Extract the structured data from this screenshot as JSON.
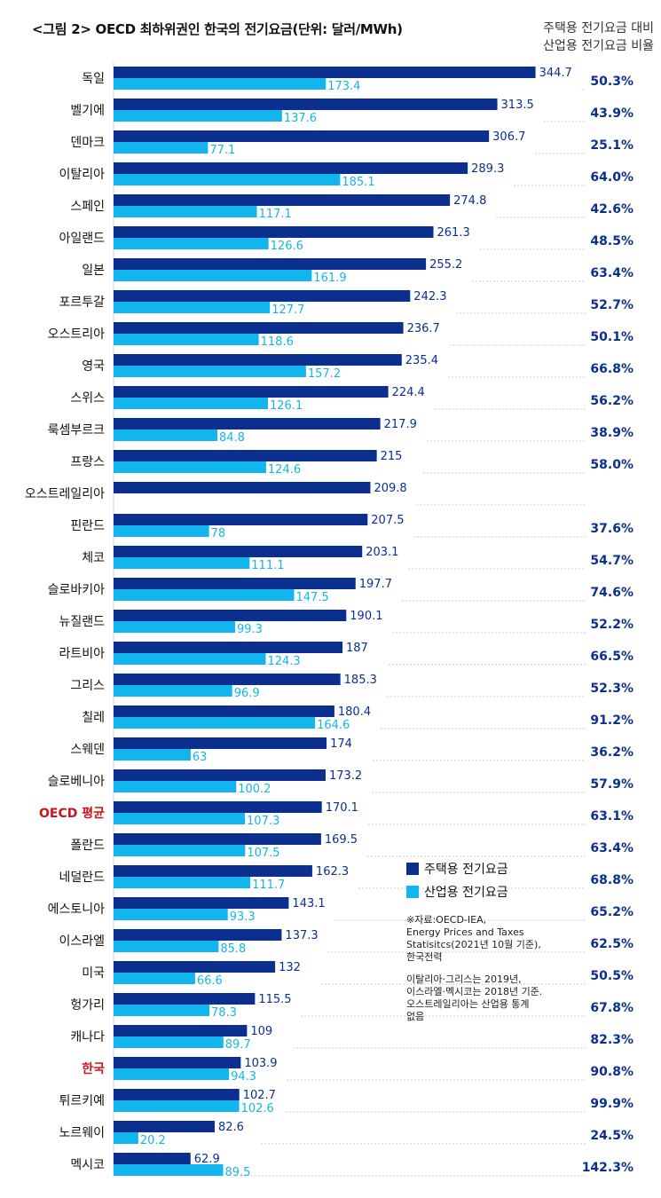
{
  "title": "<그림 2> OECD 최하위권인 한국의 전기요금(단위: 달러/MWh)",
  "right_header": [
    "주택용 전기요금 대비",
    "산업용 전기요금 비율"
  ],
  "colors": {
    "residential": "#0a2f8f",
    "industrial": "#12b6ee",
    "ratio_text": "#0a2f8f",
    "highlight_label": "#d0121b",
    "residential_value_text": "#0a2f8f",
    "industrial_value_text": "#12b6ee"
  },
  "legend": {
    "residential": "주택용 전기요금",
    "industrial": "산업용 전기요금"
  },
  "notes": [
    "※자료:OECD-IEA,\nEnergy Prices and Taxes\nStatisitcs(2021년 10월 기준),\n한국전력",
    "이탈리아·그리스는 2019년,\n이스라엘·멕시코는 2018년 기준.\n오스트레일리아는 산업용 통계\n없음"
  ],
  "chart_data": {
    "type": "bar",
    "orientation": "horizontal",
    "categories": [
      "독일",
      "벨기에",
      "덴마크",
      "이탈리아",
      "스페인",
      "아일랜드",
      "일본",
      "포르투갈",
      "오스트리아",
      "영국",
      "스위스",
      "룩셈부르크",
      "프랑스",
      "오스트레일리아",
      "핀란드",
      "체코",
      "슬로바키아",
      "뉴질랜드",
      "라트비아",
      "그리스",
      "칠레",
      "스웨덴",
      "슬로베니아",
      "OECD 평균",
      "폴란드",
      "네덜란드",
      "에스토니아",
      "이스라엘",
      "미국",
      "헝가리",
      "캐나다",
      "한국",
      "튀르키예",
      "노르웨이",
      "멕시코"
    ],
    "highlight_categories": [
      "OECD 평균",
      "한국"
    ],
    "series": [
      {
        "name": "주택용 전기요금",
        "values": [
          344.7,
          313.5,
          306.7,
          289.3,
          274.8,
          261.3,
          255.2,
          242.3,
          236.7,
          235.4,
          224.4,
          217.9,
          215,
          209.8,
          207.5,
          203.1,
          197.7,
          190.1,
          187,
          185.3,
          180.4,
          174,
          173.2,
          170.1,
          169.5,
          162.3,
          143.1,
          137.3,
          132,
          115.5,
          109,
          103.9,
          102.7,
          82.6,
          62.9
        ]
      },
      {
        "name": "산업용 전기요금",
        "values": [
          173.4,
          137.6,
          77.1,
          185.1,
          117.1,
          126.6,
          161.9,
          127.7,
          118.6,
          157.2,
          126.1,
          84.8,
          124.6,
          null,
          78,
          111.1,
          147.5,
          99.3,
          124.3,
          96.9,
          164.6,
          63,
          100.2,
          107.3,
          107.5,
          111.7,
          93.3,
          85.8,
          66.6,
          78.3,
          89.7,
          94.3,
          102.6,
          20.2,
          89.5
        ]
      }
    ],
    "value_labels": {
      "residential": [
        "344.7",
        "313.5",
        "306.7",
        "289.3",
        "274.8",
        "261.3",
        "255.2",
        "242.3",
        "236.7",
        "235.4",
        "224.4",
        "217.9",
        "215",
        "209.8",
        "207.5",
        "203.1",
        "197.7",
        "190.1",
        "187",
        "185.3",
        "180.4",
        "174",
        "173.2",
        "170.1",
        "169.5",
        "162.3",
        "143.1",
        "137.3",
        "132",
        "115.5",
        "109",
        "103.9",
        "102.7",
        "82.6",
        "62.9"
      ],
      "industrial": [
        "173.4",
        "137.6",
        "77.1",
        "185.1",
        "117.1",
        "126.6",
        "161.9",
        "127.7",
        "118.6",
        "157.2",
        "126.1",
        "84.8",
        "124.6",
        "",
        "78",
        "111.1",
        "147.5",
        "99.3",
        "124.3",
        "96.9",
        "164.6",
        "63",
        "100.2",
        "107.3",
        "107.5",
        "111.7",
        "93.3",
        "85.8",
        "66.6",
        "78.3",
        "89.7",
        "94.3",
        "102.6",
        "20.2",
        "89.5"
      ]
    },
    "ratio": [
      "50.3%",
      "43.9%",
      "25.1%",
      "64.0%",
      "42.6%",
      "48.5%",
      "63.4%",
      "52.7%",
      "50.1%",
      "66.8%",
      "56.2%",
      "38.9%",
      "58.0%",
      "",
      "37.6%",
      "54.7%",
      "74.6%",
      "52.2%",
      "66.5%",
      "52.3%",
      "91.2%",
      "36.2%",
      "57.9%",
      "63.1%",
      "63.4%",
      "68.8%",
      "65.2%",
      "62.5%",
      "50.5%",
      "67.8%",
      "82.3%",
      "90.8%",
      "99.9%",
      "24.5%",
      "142.3%"
    ],
    "xlim": [
      0,
      345
    ],
    "grid": false,
    "legend_position": "lower-right"
  }
}
